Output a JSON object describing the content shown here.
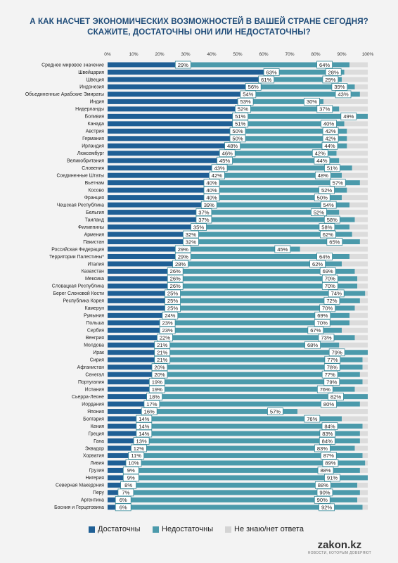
{
  "title_lines": [
    "А КАК НАСЧЕТ ЭКОНОМИЧЕСКИХ ВОЗМОЖНОСТЕЙ В ВАШЕЙ СТРАНЕ СЕГОДНЯ?",
    "СКАЖИТЕ, ДОСТАТОЧНЫ ОНИ ИЛИ НЕДОСТАТОЧНЫ?"
  ],
  "colors": {
    "enough": "#1f5f95",
    "not_enough": "#4b9aab",
    "unknown": "#dcdcdc",
    "label_border": "#3a8a9a",
    "title": "#1e4b78"
  },
  "brand": {
    "name": "zakon.kz",
    "slogan": "НОВОСТИ, КОТОРЫМ ДОВЕРЯЮТ"
  },
  "chart_data": {
    "type": "bar",
    "orientation": "horizontal",
    "stacked": true,
    "title": "А КАК НАСЧЕТ ЭКОНОМИЧЕСКИХ ВОЗМОЖНОСТЕЙ В ВАШЕЙ СТРАНЕ СЕГОДНЯ? СКАЖИТЕ, ДОСТАТОЧНЫ ОНИ ИЛИ НЕДОСТАТОЧНЫ?",
    "x_ticks": [
      "0%",
      "10%",
      "20%",
      "30%",
      "40%",
      "50%",
      "60%",
      "70%",
      "80%",
      "90%",
      "100%"
    ],
    "xlim": [
      0,
      100
    ],
    "legend_position": "bottom",
    "categories": [
      "Среднее мировое значение",
      "Швейцария",
      "Швеция",
      "Индонезия",
      "Объединенные Арабские Эмираты",
      "Индия",
      "Нидерланды",
      "Боливия",
      "Канада",
      "Австрия",
      "Германия",
      "Ирландия",
      "Люксембург",
      "Великобритания",
      "Словения",
      "Соединенные Штаты",
      "Вьетнам",
      "Косово",
      "Франция",
      "Чешская Республика",
      "Бельгия",
      "Таиланд",
      "Филиппины",
      "Армения",
      "Пакистан",
      "Российская Федерация",
      "Территории Палестины*",
      "Италия",
      "Казахстан",
      "Мексика",
      "Словацкая Республика",
      "Берег Слоновой Кости",
      "Республика Корея",
      "Камерун",
      "Румыния",
      "Польша",
      "Сербия",
      "Венгрия",
      "Молдова",
      "Ирак",
      "Сирия",
      "Афганистан",
      "Сенегал",
      "Португалия",
      "Испания",
      "Сьерра-Леоне",
      "Иордания",
      "Япония",
      "Болгария",
      "Кения",
      "Греция",
      "Гана",
      "Эквадор",
      "Хорватия",
      "Ливия",
      "Грузия",
      "Нигерия",
      "Северная Македония",
      "Перу",
      "Аргентина",
      "Босния и Герцеговина"
    ],
    "series": [
      {
        "name": "Достаточны",
        "values": [
          29,
          63,
          61,
          56,
          54,
          53,
          52,
          51,
          51,
          50,
          50,
          48,
          46,
          45,
          43,
          42,
          40,
          40,
          40,
          39,
          37,
          37,
          35,
          32,
          32,
          29,
          29,
          28,
          26,
          26,
          26,
          25,
          25,
          25,
          24,
          23,
          23,
          22,
          21,
          21,
          21,
          20,
          20,
          19,
          19,
          18,
          17,
          16,
          14,
          14,
          14,
          13,
          12,
          11,
          10,
          9,
          9,
          8,
          7,
          6,
          6
        ]
      },
      {
        "name": "Недостаточны",
        "values": [
          64,
          28,
          29,
          39,
          43,
          30,
          37,
          49,
          40,
          42,
          42,
          44,
          42,
          44,
          51,
          48,
          57,
          52,
          50,
          54,
          52,
          58,
          58,
          62,
          65,
          45,
          64,
          62,
          69,
          70,
          70,
          74,
          72,
          70,
          69,
          70,
          67,
          73,
          68,
          79,
          77,
          78,
          77,
          79,
          76,
          82,
          80,
          57,
          76,
          84,
          83,
          84,
          83,
          87,
          89,
          88,
          91,
          88,
          90,
          90,
          92
        ]
      },
      {
        "name": "Не знаю/нет ответа",
        "values": [
          7,
          9,
          10,
          5,
          3,
          17,
          11,
          0,
          9,
          8,
          8,
          8,
          12,
          11,
          6,
          10,
          3,
          8,
          10,
          7,
          11,
          5,
          7,
          6,
          3,
          26,
          7,
          10,
          5,
          4,
          4,
          1,
          3,
          5,
          7,
          7,
          10,
          5,
          11,
          0,
          2,
          2,
          3,
          2,
          5,
          0,
          3,
          27,
          10,
          2,
          3,
          3,
          5,
          2,
          1,
          3,
          0,
          4,
          3,
          4,
          2
        ]
      }
    ]
  }
}
